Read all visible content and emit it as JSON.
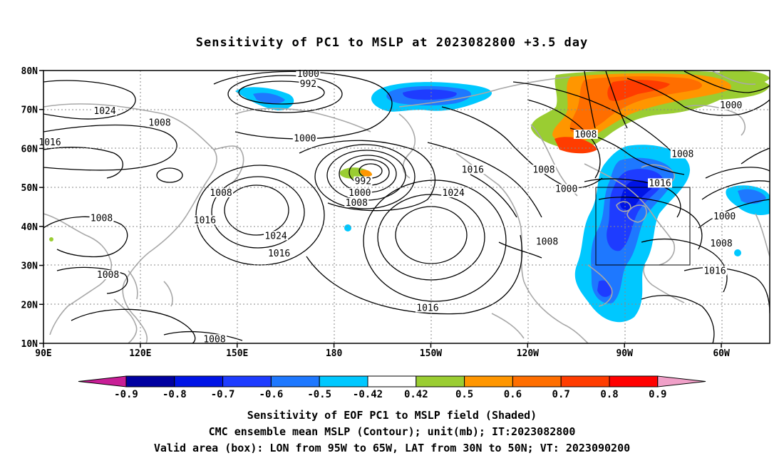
{
  "title": "Sensitivity of PC1 to MSLP at 2023082800 +3.5 day",
  "map": {
    "lat_labels": [
      "80N",
      "70N",
      "60N",
      "50N",
      "40N",
      "30N",
      "20N",
      "10N"
    ],
    "lon_labels": [
      "90E",
      "120E",
      "150E",
      "180",
      "150W",
      "120W",
      "90W",
      "60W"
    ],
    "lon_range_deg": [
      90,
      315
    ],
    "lat_range_deg": [
      10,
      80
    ],
    "valid_box": {
      "lon_deg": [
        265,
        295
      ],
      "lat_deg": [
        30,
        50
      ]
    },
    "grid": "dotted",
    "contour_labels": [
      {
        "text": "1000",
        "lon": 172,
        "lat": 78.5
      },
      {
        "text": "992",
        "lon": 172,
        "lat": 76
      },
      {
        "text": "1024",
        "lon": 109,
        "lat": 69
      },
      {
        "text": "1008",
        "lon": 126,
        "lat": 66
      },
      {
        "text": "1016",
        "lon": 92,
        "lat": 61
      },
      {
        "text": "1000",
        "lon": 171,
        "lat": 62
      },
      {
        "text": "992",
        "lon": 189,
        "lat": 51
      },
      {
        "text": "1000",
        "lon": 188,
        "lat": 48
      },
      {
        "text": "1008",
        "lon": 187,
        "lat": 45.5
      },
      {
        "text": "1016",
        "lon": 223,
        "lat": 54
      },
      {
        "text": "1008",
        "lon": 245,
        "lat": 54
      },
      {
        "text": "1024",
        "lon": 217,
        "lat": 48
      },
      {
        "text": "1008",
        "lon": 145,
        "lat": 48
      },
      {
        "text": "1008",
        "lon": 108,
        "lat": 41.5
      },
      {
        "text": "1016",
        "lon": 140,
        "lat": 41
      },
      {
        "text": "1024",
        "lon": 162,
        "lat": 37
      },
      {
        "text": "1016",
        "lon": 163,
        "lat": 32.5
      },
      {
        "text": "1008",
        "lon": 110,
        "lat": 27
      },
      {
        "text": "1016",
        "lon": 209,
        "lat": 18.5
      },
      {
        "text": "1008",
        "lon": 246,
        "lat": 35.5
      },
      {
        "text": "1000",
        "lon": 252,
        "lat": 49
      },
      {
        "text": "1008",
        "lon": 258,
        "lat": 63
      },
      {
        "text": "1008",
        "lon": 288,
        "lat": 58
      },
      {
        "text": "1016",
        "lon": 281,
        "lat": 50.5
      },
      {
        "text": "1000",
        "lon": 303,
        "lat": 70.5
      },
      {
        "text": "1000",
        "lon": 301,
        "lat": 42
      },
      {
        "text": "1008",
        "lon": 300,
        "lat": 35
      },
      {
        "text": "1016",
        "lon": 298,
        "lat": 28
      },
      {
        "text": "1008",
        "lon": 143,
        "lat": 10.5
      }
    ]
  },
  "colorbar": {
    "labels": [
      "-0.9",
      "-0.8",
      "-0.7",
      "-0.6",
      "-0.5",
      "-0.42",
      "0.42",
      "0.5",
      "0.6",
      "0.7",
      "0.8",
      "0.9"
    ],
    "colors": {
      "below_min": "#c81e96",
      "m09_m08": "#0000a0",
      "m08_m07": "#0014e6",
      "m07_m06": "#1e3cff",
      "m06_m05": "#1e78ff",
      "m05_m042": "#00c8ff",
      "m042_042": "#ffffff",
      "p042_p05": "#9acd32",
      "p05_p06": "#ff9600",
      "p06_p07": "#ff6e00",
      "p07_p08": "#ff3c00",
      "p08_p09": "#ff0000",
      "above_max": "#f0a0c8"
    }
  },
  "footer": {
    "line1": "Sensitivity of EOF PC1 to MSLP field (Shaded)",
    "line2": "CMC ensemble mean MSLP (Contour); unit(mb); IT:2023082800",
    "line3": "Valid area (box): LON from 95W to 65W, LAT from 30N to 50N; VT: 2023090200"
  }
}
